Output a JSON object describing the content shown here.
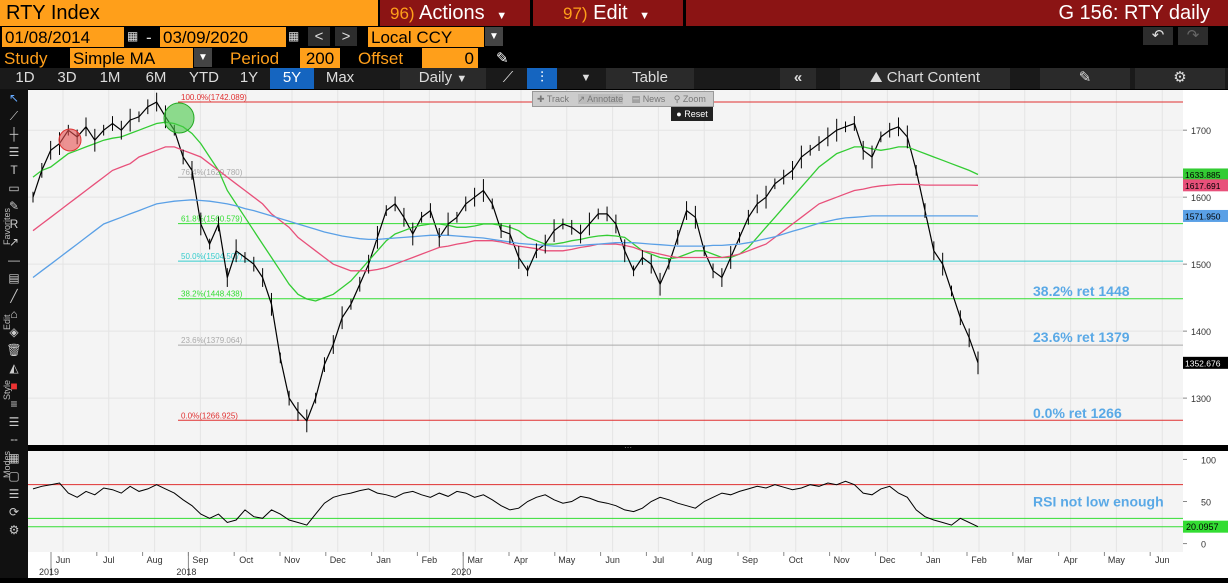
{
  "header": {
    "ticker": "RTY Index",
    "actions_num": "96)",
    "actions_label": "Actions",
    "edit_num": "97)",
    "edit_label": "Edit",
    "screen_title": "G 156: RTY daily"
  },
  "dates": {
    "start": "01/08/2014",
    "separator": "-",
    "end": "03/09/2020",
    "currency": "Local CCY"
  },
  "study": {
    "label": "Study",
    "type": "Simple MA",
    "period_label": "Period",
    "period": "200",
    "offset_label": "Offset",
    "offset": "0"
  },
  "tabs": [
    "1D",
    "3D",
    "1M",
    "6M",
    "YTD",
    "1Y",
    "5Y",
    "Max"
  ],
  "selected_tab": "5Y",
  "toolbar": {
    "frequency": "Daily",
    "table_label": "Table",
    "chart_content_label": "Chart Content"
  },
  "popup": {
    "track": "Track",
    "annotate": "Annotate",
    "news": "News",
    "zoom": "Zoom",
    "reset": "Reset"
  },
  "side_labels": {
    "favorites": "Favorites",
    "edit": "Edit",
    "style": "Style",
    "modes": "Modes"
  },
  "colors": {
    "price": "#000000",
    "ma_short": "#33cc33",
    "ma_mid": "#e8507a",
    "ma_long": "#5aa0e6",
    "fib_red": "#e03030",
    "fib_green": "#33dd33",
    "fib_cyan": "#33cccc",
    "annotation": "#5aa9e6",
    "bloomberg_orange": "#ff9f1a",
    "select_blue": "#1565c0"
  },
  "chart_data": [
    {
      "type": "line",
      "title": "",
      "ylim": [
        1230,
        1760
      ],
      "yticks": [
        "1700",
        "1600",
        "1500",
        "1400",
        "1300"
      ],
      "ytick_values": [
        1700,
        1600,
        1500,
        1400,
        1300
      ],
      "xticks": [
        "Jun",
        "Jul",
        "Aug",
        "Sep",
        "Oct",
        "Nov",
        "Dec",
        "Jan",
        "Feb",
        "Mar",
        "Apr",
        "May",
        "Jun",
        "Jul",
        "Aug",
        "Sep",
        "Oct",
        "Nov",
        "Dec",
        "Jan",
        "Feb",
        "Mar",
        "Apr",
        "May",
        "Jun"
      ],
      "year_labels": [
        {
          "label": "2018",
          "after": "Sep"
        },
        {
          "label": "2019",
          "after": "Jun"
        },
        {
          "label": "2020",
          "after": "Mar"
        }
      ],
      "fib_levels": [
        {
          "label": "100.0%(1742.089)",
          "value": 1742.089,
          "color": "#e03030"
        },
        {
          "label": "76.4%(1629.780)",
          "value": 1629.78,
          "color": "#aaaaaa"
        },
        {
          "label": "61.8%(1560.579)",
          "value": 1560.579,
          "color": "#33dd33"
        },
        {
          "label": "50.0%(1504.507)",
          "value": 1504.507,
          "color": "#33cccc"
        },
        {
          "label": "38.2%(1448.438)",
          "value": 1448.438,
          "color": "#33dd33"
        },
        {
          "label": "23.6%(1379.064)",
          "value": 1379.064,
          "color": "#aaaaaa"
        },
        {
          "label": "0.0%(1266.925)",
          "value": 1266.925,
          "color": "#e03030"
        }
      ],
      "annotations": [
        "38.2% ret 1448",
        "23.6% ret 1379",
        "0.0% ret 1266"
      ],
      "annotation_values": [
        1448,
        1379,
        1266
      ],
      "last_values": [
        {
          "label": "1633.885",
          "value": 1633.885,
          "bg": "#33cc33"
        },
        {
          "label": "1617.691",
          "value": 1617.691,
          "bg": "#e8507a"
        },
        {
          "label": "1571.950",
          "value": 1571.95,
          "bg": "#5aa0e6"
        },
        {
          "label": "1352.676",
          "value": 1352.676,
          "bg": "#000000"
        }
      ],
      "series": [
        {
          "values": [
            1600,
            1640,
            1670,
            1680,
            1700,
            1690,
            1705,
            1685,
            1700,
            1710,
            1700,
            1715,
            1720,
            1735,
            1742,
            1720,
            1700,
            1660,
            1640,
            1560,
            1530,
            1560,
            1480,
            1520,
            1510,
            1500,
            1480,
            1440,
            1360,
            1300,
            1280,
            1266,
            1300,
            1350,
            1380,
            1420,
            1440,
            1470,
            1500,
            1540,
            1580,
            1590,
            1570,
            1545,
            1570,
            1580,
            1540,
            1560,
            1570,
            1590,
            1600,
            1610,
            1590,
            1550,
            1545,
            1510,
            1490,
            1520,
            1530,
            1550,
            1560,
            1555,
            1545,
            1560,
            1575,
            1575,
            1560,
            1520,
            1490,
            1510,
            1500,
            1470,
            1500,
            1540,
            1580,
            1570,
            1520,
            1490,
            1480,
            1510,
            1540,
            1570,
            1590,
            1600,
            1620,
            1630,
            1640,
            1660,
            1670,
            1680,
            1690,
            1700,
            1705,
            1710,
            1670,
            1660,
            1690,
            1700,
            1705,
            1690,
            1640,
            1580,
            1520,
            1500,
            1460,
            1420,
            1390,
            1352.676
          ]
        },
        {
          "values": [
            1630,
            1640,
            1645,
            1655,
            1665,
            1670,
            1675,
            1680,
            1685,
            1688,
            1690,
            1695,
            1700,
            1705,
            1710,
            1712,
            1710,
            1705,
            1695,
            1680,
            1660,
            1640,
            1610,
            1590,
            1570,
            1550,
            1530,
            1510,
            1490,
            1470,
            1455,
            1448,
            1445,
            1450,
            1455,
            1465,
            1475,
            1490,
            1505,
            1520,
            1535,
            1545,
            1550,
            1555,
            1558,
            1560,
            1560,
            1558,
            1555,
            1555,
            1557,
            1560,
            1560,
            1558,
            1555,
            1550,
            1540,
            1535,
            1530,
            1530,
            1532,
            1535,
            1537,
            1540,
            1542,
            1543,
            1542,
            1540,
            1530,
            1520,
            1515,
            1510,
            1508,
            1510,
            1515,
            1520,
            1520,
            1515,
            1510,
            1510,
            1515,
            1525,
            1540,
            1555,
            1570,
            1585,
            1600,
            1615,
            1630,
            1645,
            1655,
            1665,
            1670,
            1675,
            1675,
            1672,
            1670,
            1672,
            1675,
            1675,
            1670,
            1665,
            1660,
            1655,
            1650,
            1645,
            1640,
            1633.885
          ]
        },
        {
          "values": [
            1550,
            1560,
            1570,
            1580,
            1590,
            1600,
            1610,
            1620,
            1630,
            1640,
            1645,
            1650,
            1660,
            1665,
            1670,
            1675,
            1675,
            1670,
            1665,
            1660,
            1650,
            1640,
            1630,
            1620,
            1610,
            1600,
            1590,
            1575,
            1565,
            1555,
            1540,
            1530,
            1520,
            1510,
            1500,
            1495,
            1490,
            1490,
            1490,
            1492,
            1495,
            1500,
            1505,
            1510,
            1515,
            1520,
            1525,
            1527,
            1530,
            1532,
            1535,
            1535,
            1535,
            1533,
            1530,
            1527,
            1525,
            1523,
            1520,
            1520,
            1520,
            1522,
            1525,
            1527,
            1530,
            1530,
            1530,
            1528,
            1525,
            1520,
            1518,
            1515,
            1512,
            1510,
            1510,
            1510,
            1510,
            1510,
            1510,
            1512,
            1515,
            1520,
            1525,
            1530,
            1540,
            1550,
            1560,
            1570,
            1580,
            1590,
            1595,
            1600,
            1605,
            1610,
            1612,
            1615,
            1617,
            1618,
            1619,
            1619,
            1619,
            1618,
            1618,
            1618,
            1618,
            1618,
            1618,
            1617.691
          ]
        },
        {
          "values": [
            1480,
            1490,
            1500,
            1510,
            1520,
            1530,
            1540,
            1550,
            1560,
            1565,
            1570,
            1575,
            1580,
            1585,
            1590,
            1592,
            1594,
            1595,
            1596,
            1595,
            1594,
            1592,
            1590,
            1587,
            1583,
            1580,
            1576,
            1572,
            1568,
            1564,
            1560,
            1556,
            1552,
            1548,
            1545,
            1542,
            1540,
            1538,
            1537,
            1537,
            1538,
            1539,
            1540,
            1541,
            1542,
            1543,
            1543,
            1543,
            1542,
            1541,
            1540,
            1539,
            1537,
            1535,
            1533,
            1531,
            1530,
            1529,
            1528,
            1527,
            1527,
            1527,
            1528,
            1529,
            1530,
            1531,
            1532,
            1532,
            1532,
            1531,
            1530,
            1529,
            1528,
            1527,
            1527,
            1527,
            1527,
            1528,
            1528,
            1529,
            1530,
            1532,
            1535,
            1538,
            1541,
            1545,
            1549,
            1553,
            1557,
            1561,
            1564,
            1567,
            1569,
            1570,
            1571,
            1572,
            1572,
            1572,
            1572,
            1572,
            1572,
            1572,
            1572,
            1572,
            1572,
            1572,
            1572,
            1571.95
          ]
        }
      ]
    },
    {
      "type": "line",
      "title": "",
      "ylim": [
        -10,
        110
      ],
      "yticks": [
        "100",
        "50",
        "0"
      ],
      "ytick_values": [
        100,
        50,
        0
      ],
      "hlines": [
        {
          "value": 70,
          "color": "#e03030"
        },
        {
          "value": 30,
          "color": "#33dd33"
        },
        {
          "value": 20,
          "color": "#33dd33"
        }
      ],
      "annotation": "RSI not low enough",
      "last_value": {
        "label": "20.0957",
        "value": 20.0957
      },
      "series": [
        {
          "values": [
            65,
            68,
            70,
            72,
            60,
            55,
            62,
            58,
            66,
            64,
            60,
            68,
            62,
            65,
            70,
            65,
            60,
            52,
            45,
            35,
            30,
            35,
            25,
            28,
            40,
            32,
            30,
            40,
            35,
            28,
            25,
            22,
            35,
            48,
            55,
            58,
            60,
            63,
            65,
            60,
            58,
            55,
            60,
            62,
            58,
            55,
            60,
            56,
            62,
            60,
            55,
            58,
            52,
            45,
            40,
            42,
            50,
            55,
            58,
            52,
            48,
            50,
            56,
            54,
            50,
            48,
            45,
            40,
            38,
            42,
            50,
            55,
            52,
            48,
            45,
            42,
            50,
            55,
            60,
            58,
            62,
            65,
            68,
            66,
            70,
            67,
            64,
            66,
            70,
            68,
            72,
            70,
            74,
            70,
            60,
            58,
            65,
            68,
            60,
            55,
            40,
            32,
            28,
            25,
            22,
            30,
            25,
            20.0957
          ]
        }
      ]
    }
  ]
}
